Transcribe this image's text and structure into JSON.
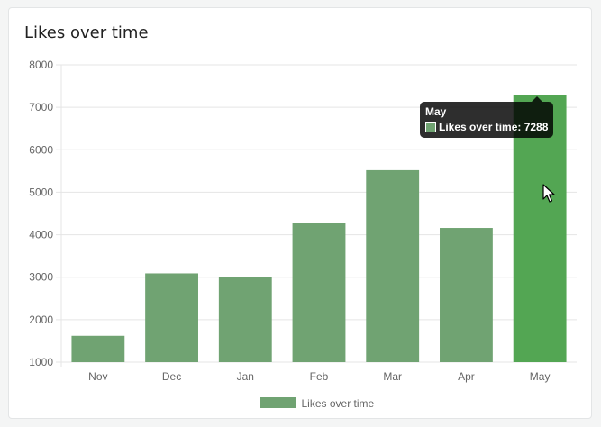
{
  "card": {
    "title": "Likes over time"
  },
  "colors": {
    "bar": "#70a372",
    "bar_active": "#53a653",
    "grid": "#e5e5e5",
    "tooltip_bg": "#000000"
  },
  "chart_data": {
    "type": "bar",
    "title": "Likes over time",
    "xlabel": "",
    "ylabel": "",
    "categories": [
      "Nov",
      "Dec",
      "Jan",
      "Feb",
      "Mar",
      "Apr",
      "May"
    ],
    "series": [
      {
        "name": "Likes over time",
        "values": [
          1620,
          3090,
          3000,
          4270,
          5520,
          4160,
          7288
        ]
      }
    ],
    "ylim": [
      1000,
      8000
    ],
    "yticks": [
      "8000",
      "7000",
      "6000",
      "5000",
      "4000",
      "3000",
      "2000",
      "1000"
    ],
    "grid": true,
    "legend": "bottom",
    "highlighted_category": "May"
  },
  "tooltip": {
    "title": "May",
    "text": "Likes over time: 7288"
  },
  "cursor": {
    "icon": "arrow-cursor-icon"
  }
}
